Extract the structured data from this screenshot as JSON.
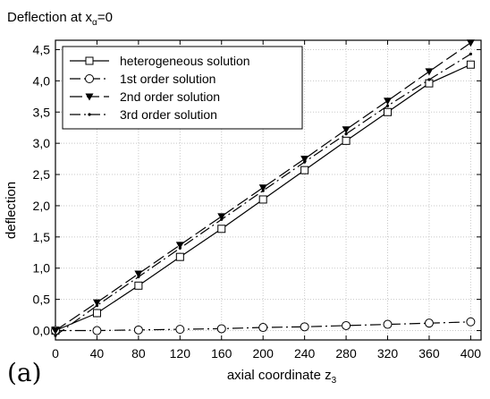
{
  "chart_data": {
    "type": "line",
    "title": "Deflection at x",
    "title_subscript": "α",
    "title_suffix": "=0",
    "xlabel": "axial coordinate z",
    "xlabel_subscript": "3",
    "ylabel": "deflection",
    "panel_label": "(a)",
    "xlim": [
      0,
      410
    ],
    "ylim": [
      -0.15,
      4.65
    ],
    "x_ticks": [
      0,
      40,
      80,
      120,
      160,
      200,
      240,
      280,
      320,
      360,
      400
    ],
    "y_ticks": [
      0.0,
      0.5,
      1.0,
      1.5,
      2.0,
      2.5,
      3.0,
      3.5,
      4.0,
      4.5
    ],
    "y_tick_labels": [
      "0,0",
      "0,5",
      "1,0",
      "1,5",
      "2,0",
      "2,5",
      "3,0",
      "3,5",
      "4,0",
      "4,5"
    ],
    "grid": true,
    "legend_position": "top-left",
    "series": [
      {
        "name": "heterogeneous solution",
        "marker": "square-open",
        "dash": "solid",
        "x": [
          0,
          40,
          80,
          120,
          160,
          200,
          240,
          280,
          320,
          360,
          400
        ],
        "y": [
          0.0,
          0.28,
          0.72,
          1.18,
          1.63,
          2.1,
          2.57,
          3.04,
          3.5,
          3.96,
          4.26
        ]
      },
      {
        "name": "1st order solution",
        "marker": "circle-open",
        "dash": "dashdot",
        "x": [
          0,
          40,
          80,
          120,
          160,
          200,
          240,
          280,
          320,
          360,
          400
        ],
        "y": [
          0.0,
          0.0,
          0.01,
          0.02,
          0.03,
          0.05,
          0.06,
          0.08,
          0.1,
          0.12,
          0.14
        ]
      },
      {
        "name": "2nd order solution",
        "marker": "triangle-down-filled",
        "dash": "longdash",
        "x": [
          0,
          40,
          80,
          120,
          160,
          200,
          240,
          280,
          320,
          360,
          400
        ],
        "y": [
          0.0,
          0.45,
          0.91,
          1.37,
          1.83,
          2.29,
          2.75,
          3.22,
          3.68,
          4.15,
          4.61
        ]
      },
      {
        "name": "3rd order solution",
        "marker": "dot",
        "dash": "dashdot",
        "x": [
          0,
          40,
          80,
          120,
          160,
          200,
          240,
          280,
          320,
          360,
          400
        ],
        "y": [
          -0.08,
          0.4,
          0.86,
          1.32,
          1.78,
          2.24,
          2.7,
          3.15,
          3.6,
          4.02,
          4.43
        ]
      }
    ]
  }
}
